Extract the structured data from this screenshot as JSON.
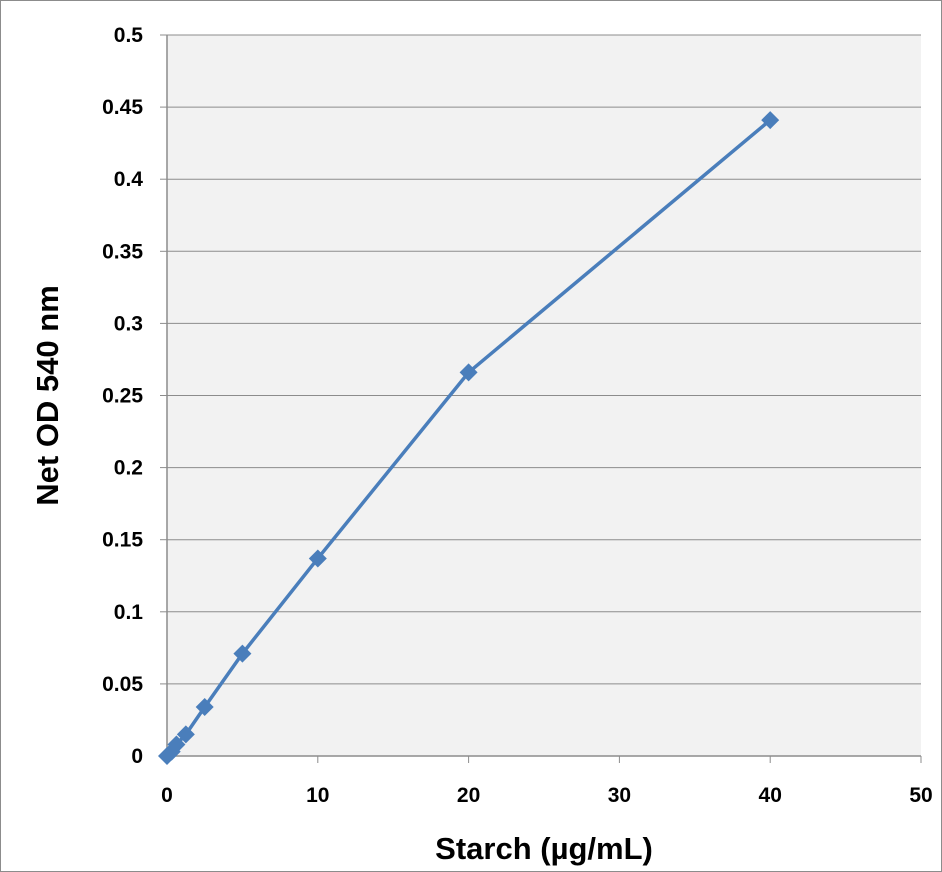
{
  "chart_data": {
    "type": "scatter",
    "title": "",
    "xlabel": "Starch (µg/mL)",
    "ylabel": "Net OD 540 nm",
    "xlim": [
      0,
      50
    ],
    "ylim": [
      0,
      0.5
    ],
    "x_ticks": [
      "0",
      "10",
      "20",
      "30",
      "40",
      "50"
    ],
    "y_ticks": [
      "0",
      "0.05",
      "0.1",
      "0.15",
      "0.2",
      "0.25",
      "0.3",
      "0.35",
      "0.4",
      "0.45",
      "0.5"
    ],
    "grid": "horizontal",
    "legend": "none",
    "series": [
      {
        "x": [
          0,
          0.3125,
          0.625,
          1.25,
          2.5,
          5,
          10,
          20,
          40
        ],
        "y": [
          0,
          0.003,
          0.008,
          0.015,
          0.034,
          0.071,
          0.137,
          0.266,
          0.441
        ],
        "color": "#4a7ebb",
        "marker": "diamond",
        "line": true
      }
    ]
  },
  "style": {
    "plot_background": "#f2f2f2",
    "gridline_color": "#8c8c8c",
    "axis_color": "#8c8c8c",
    "series_color": "#4a7ebb"
  }
}
